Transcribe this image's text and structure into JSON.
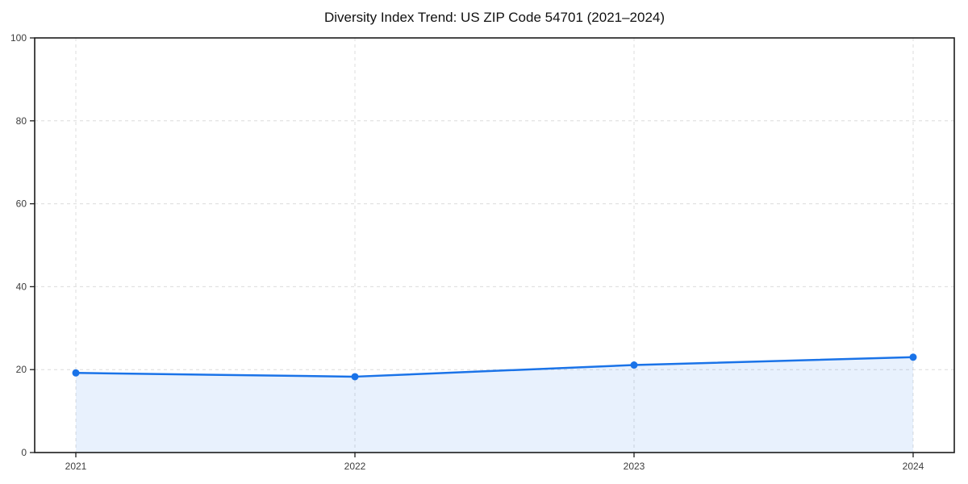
{
  "chart_data": {
    "type": "area",
    "title": "Diversity Index Trend: US ZIP Code 54701 (2021–2024)",
    "categories": [
      "2021",
      "2022",
      "2023",
      "2024"
    ],
    "series": [
      {
        "name": "Diversity Index",
        "values": [
          19.2,
          18.3,
          21.1,
          23.0
        ]
      }
    ],
    "xlabel": "",
    "ylabel": "",
    "ylim": [
      0,
      100
    ],
    "y_ticks": [
      0,
      20,
      40,
      60,
      80,
      100
    ],
    "grid": true,
    "legend_visible": false,
    "colors": {
      "line": "#1a73e8",
      "marker": "#1a73e8",
      "fill": "#1a73e8",
      "fill_opacity": 0.1,
      "gridline": "#dcdcdc",
      "spine": "#1c1c1c",
      "tick_label": "#3d3d3d",
      "title": "#111111",
      "background": "#ffffff"
    }
  }
}
